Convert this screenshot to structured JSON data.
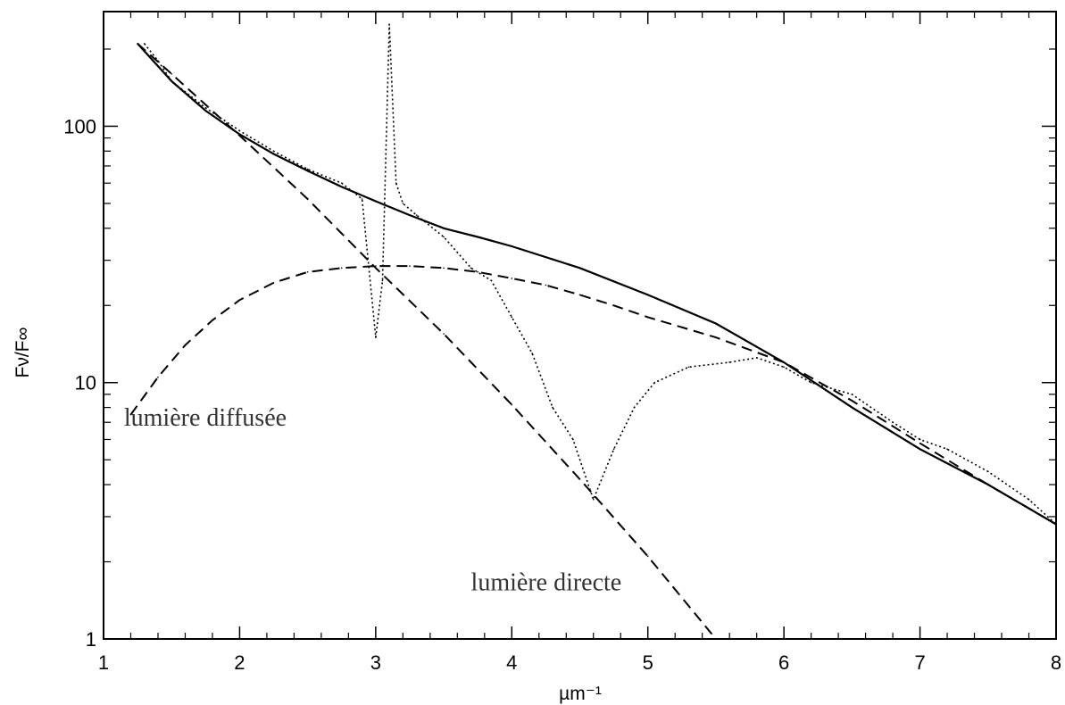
{
  "chart_data": {
    "type": "line",
    "title": "",
    "xlabel": "µm⁻¹",
    "ylabel": "Fν/F∞",
    "xlim": [
      1,
      8
    ],
    "ylim": [
      1,
      280
    ],
    "yscale": "log",
    "grid": false,
    "x_ticks": [
      1,
      2,
      3,
      4,
      5,
      6,
      7,
      8
    ],
    "x_tick_labels": [
      "1",
      "2",
      "3",
      "4",
      "5",
      "6",
      "7",
      "8"
    ],
    "y_ticks": [
      1,
      10,
      100
    ],
    "y_tick_labels": [
      "1",
      "10",
      "100"
    ],
    "series": [
      {
        "key": "total",
        "style": "solid",
        "x": [
          1.25,
          1.5,
          1.75,
          2.0,
          2.25,
          2.5,
          2.75,
          3.0,
          3.25,
          3.5,
          3.75,
          4.0,
          4.5,
          5.0,
          5.5,
          6.0,
          6.5,
          7.0,
          7.5,
          8.0
        ],
        "y": [
          210,
          150,
          115,
          93,
          78,
          67,
          58,
          51,
          45,
          40,
          37,
          34,
          28,
          22,
          17,
          12,
          8,
          5.5,
          4,
          2.8
        ]
      },
      {
        "key": "direct",
        "style": "dashed",
        "x": [
          1.25,
          1.5,
          2.0,
          2.5,
          3.0,
          3.5,
          4.0,
          4.5,
          5.0,
          5.5
        ],
        "y": [
          210,
          160,
          92,
          52,
          28,
          15.5,
          8.2,
          4.2,
          2.1,
          1.0
        ]
      },
      {
        "key": "diffuse",
        "style": "dashed",
        "x": [
          1.2,
          1.4,
          1.6,
          1.8,
          2.0,
          2.25,
          2.5,
          2.75,
          3.0,
          3.25,
          3.5,
          3.75,
          4.0,
          4.25,
          4.5,
          4.75,
          5.0,
          5.5,
          6.0,
          6.5,
          7.0,
          7.5,
          8.0
        ],
        "y": [
          7.5,
          10.5,
          14,
          17.5,
          21,
          24.5,
          27,
          28,
          28.5,
          28.5,
          28,
          27,
          25.5,
          24,
          22,
          20,
          18,
          15,
          12,
          8.5,
          5.8,
          4.0,
          2.8
        ]
      },
      {
        "key": "observed",
        "style": "dotted",
        "x": [
          1.3,
          1.4,
          1.5,
          1.75,
          2.0,
          2.25,
          2.5,
          2.75,
          2.9,
          3.0,
          3.05,
          3.1,
          3.15,
          3.2,
          3.3,
          3.5,
          3.7,
          3.85,
          4.0,
          4.15,
          4.3,
          4.45,
          4.6,
          4.75,
          4.9,
          5.05,
          5.3,
          5.6,
          5.8,
          6.0,
          6.2,
          6.5,
          6.8,
          7.0,
          7.2,
          7.5,
          7.8,
          8.0
        ],
        "y": [
          210,
          180,
          150,
          118,
          96,
          80,
          68,
          60,
          52,
          15,
          25,
          250,
          60,
          50,
          45,
          37,
          28,
          25,
          18,
          13,
          8,
          6,
          3.5,
          5.5,
          8,
          10,
          11.5,
          12,
          12.5,
          11.5,
          10,
          9,
          7,
          6,
          5.5,
          4.5,
          3.5,
          2.8
        ]
      }
    ],
    "annotations": [
      {
        "text": "lumière diffusée",
        "x": 1.15,
        "y": 6.8
      },
      {
        "text": "lumière directe",
        "x": 3.7,
        "y": 1.55
      }
    ]
  }
}
